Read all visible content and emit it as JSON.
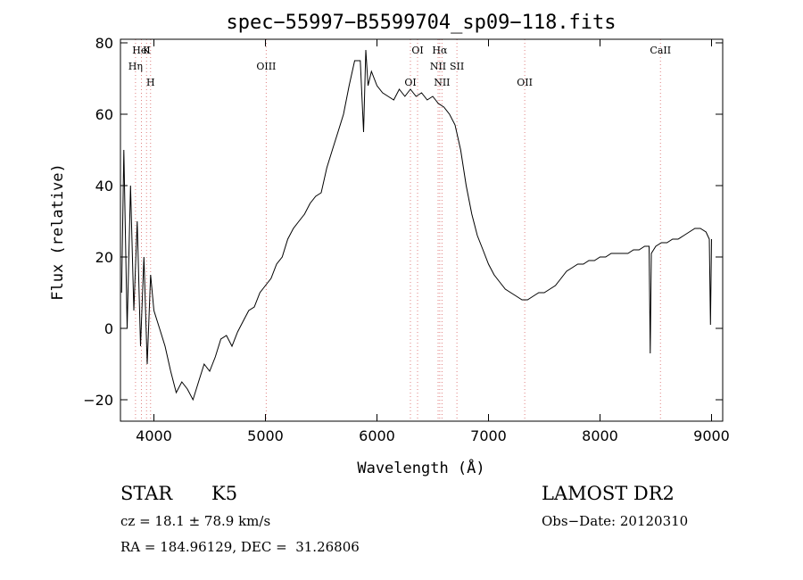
{
  "chart_data": {
    "type": "line",
    "title": "spec−55997−B5599704_sp09−118.fits",
    "xlabel": "Wavelength (Å)",
    "ylabel": "Flux (relative)",
    "xlim": [
      3700,
      9100
    ],
    "ylim": [
      -26,
      81
    ],
    "x_ticks": [
      4000,
      5000,
      6000,
      7000,
      8000,
      9000
    ],
    "y_ticks": [
      -20,
      0,
      20,
      40,
      60,
      80
    ],
    "grid": false,
    "series": [
      {
        "x": [
          3710,
          3730,
          3760,
          3790,
          3820,
          3850,
          3880,
          3910,
          3940,
          3970,
          4000,
          4050,
          4100,
          4150,
          4200,
          4250,
          4300,
          4350,
          4400,
          4450,
          4500,
          4550,
          4600,
          4650,
          4700,
          4750,
          4800,
          4850,
          4900,
          4950,
          5000,
          5050,
          5100,
          5150,
          5200,
          5250,
          5300,
          5350,
          5400,
          5450,
          5500,
          5550,
          5600,
          5650,
          5700,
          5750,
          5800,
          5850,
          5880,
          5900,
          5920,
          5950,
          6000,
          6050,
          6100,
          6150,
          6200,
          6250,
          6300,
          6350,
          6400,
          6450,
          6500,
          6550,
          6600,
          6650,
          6700,
          6750,
          6800,
          6850,
          6900,
          6950,
          7000,
          7050,
          7100,
          7150,
          7200,
          7250,
          7300,
          7350,
          7400,
          7450,
          7500,
          7550,
          7600,
          7650,
          7700,
          7750,
          7800,
          7850,
          7900,
          7950,
          8000,
          8050,
          8100,
          8150,
          8200,
          8250,
          8300,
          8350,
          8400,
          8440,
          8450,
          8460,
          8500,
          8550,
          8600,
          8650,
          8700,
          8750,
          8800,
          8850,
          8900,
          8950,
          8980,
          8990,
          9000
        ],
        "y": [
          10,
          50,
          0,
          40,
          5,
          30,
          -5,
          20,
          -10,
          15,
          5,
          0,
          -5,
          -12,
          -18,
          -15,
          -17,
          -20,
          -15,
          -10,
          -12,
          -8,
          -3,
          -2,
          -5,
          -1,
          2,
          5,
          6,
          10,
          12,
          14,
          18,
          20,
          25,
          28,
          30,
          32,
          35,
          37,
          38,
          45,
          50,
          55,
          60,
          68,
          75,
          75,
          55,
          78,
          68,
          72,
          68,
          66,
          65,
          64,
          67,
          65,
          67,
          65,
          66,
          64,
          65,
          63,
          62,
          60,
          57,
          50,
          40,
          32,
          26,
          22,
          18,
          15,
          13,
          11,
          10,
          9,
          8,
          8,
          9,
          10,
          10,
          11,
          12,
          14,
          16,
          17,
          18,
          18,
          19,
          19,
          20,
          20,
          21,
          21,
          21,
          21,
          22,
          22,
          23,
          23,
          -7,
          21,
          23,
          24,
          24,
          25,
          25,
          26,
          27,
          28,
          28,
          27,
          25,
          1,
          25
        ]
      }
    ],
    "lines": [
      {
        "label": "HeI",
        "x": 3888
      },
      {
        "label": "Hη",
        "x": 3835
      },
      {
        "label": "H",
        "x": 3970
      },
      {
        "label": "K",
        "x": 3934
      },
      {
        "label": "OIII",
        "x": 5007
      },
      {
        "label": "OI",
        "x": 6300
      },
      {
        "label": "OI",
        "x": 6364
      },
      {
        "label": "NII",
        "x": 6548
      },
      {
        "label": "NII",
        "x": 6583
      },
      {
        "label": "Hα",
        "x": 6563
      },
      {
        "label": "SII",
        "x": 6717
      },
      {
        "label": "OII",
        "x": 7325
      },
      {
        "label": "CaII",
        "x": 8542
      }
    ]
  },
  "info": {
    "class_label": "STAR",
    "subclass_label": "K5",
    "survey_label": "LAMOST DR2",
    "cz_text": "cz = 18.1 ± 78.9 km/s",
    "obs_date_text": "Obs−Date: 20120310",
    "coords_text": "RA = 184.96129, DEC =  31.26806"
  },
  "colors": {
    "spectrum": "#000000",
    "line_markers": "#e08080",
    "axes": "#000000"
  }
}
